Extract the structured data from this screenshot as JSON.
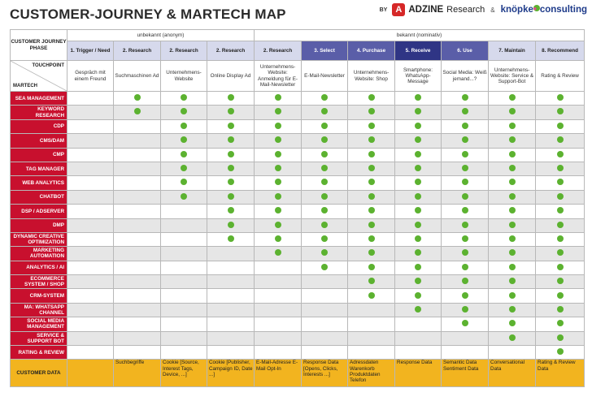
{
  "header": {
    "title": "CUSTOMER-JOURNEY & MARTECH MAP",
    "by": "BY",
    "adzine_logo": "A",
    "adzine": "ADZINE",
    "adzine_sub": "Research",
    "amp": "&",
    "knoepke_a": "knöpke",
    "knoepke_dot": "•",
    "knoepke_b": "consulting"
  },
  "groups": {
    "anonymous": "unbekannt (anonym)",
    "known": "bekannt (nominativ)"
  },
  "row_labels": {
    "phase": "CUSTOMER JOURNEY PHASE",
    "touchpoint": "TOUCHPOINT",
    "martech": "MARTECH",
    "customer_data": "CUSTOMER DATA"
  },
  "phases": [
    "1. Trigger / Need",
    "2. Research",
    "2. Research",
    "2. Research",
    "2. Research",
    "3. Select",
    "4. Purchase",
    "5. Receive",
    "6. Use",
    "7. Maintain",
    "8. Recommend"
  ],
  "touchpoints": [
    "Gespräch mit einem Freund",
    "Suchmaschinen Ad",
    "Unternehmens-Website",
    "Online Display Ad",
    "Unternehmens-Website: Anmeldung für E-Mail-Newsletter",
    "E-Mail-Newsletter",
    "Unternehmens-Website: Shop",
    "Smartphone: WhatsApp-Message",
    "Social Media: Weiß jemand...?",
    "Unternehmens-Website: Service & Support-Bot",
    "Rating & Review"
  ],
  "martech": [
    {
      "label": "SEA MANAGEMENT",
      "dots": [
        0,
        1,
        1,
        1,
        1,
        1,
        1,
        1,
        1,
        1,
        1
      ]
    },
    {
      "label": "KEYWORD RESEARCH",
      "dots": [
        0,
        1,
        1,
        1,
        1,
        1,
        1,
        1,
        1,
        1,
        1
      ]
    },
    {
      "label": "CDP",
      "dots": [
        0,
        0,
        1,
        1,
        1,
        1,
        1,
        1,
        1,
        1,
        1
      ]
    },
    {
      "label": "CMS/DAM",
      "dots": [
        0,
        0,
        1,
        1,
        1,
        1,
        1,
        1,
        1,
        1,
        1
      ]
    },
    {
      "label": "CMP",
      "dots": [
        0,
        0,
        1,
        1,
        1,
        1,
        1,
        1,
        1,
        1,
        1
      ]
    },
    {
      "label": "TAG MANAGER",
      "dots": [
        0,
        0,
        1,
        1,
        1,
        1,
        1,
        1,
        1,
        1,
        1
      ]
    },
    {
      "label": "WEB ANALYTICS",
      "dots": [
        0,
        0,
        1,
        1,
        1,
        1,
        1,
        1,
        1,
        1,
        1
      ]
    },
    {
      "label": "CHATBOT",
      "dots": [
        0,
        0,
        1,
        1,
        1,
        1,
        1,
        1,
        1,
        1,
        1
      ]
    },
    {
      "label": "DSP / ADSERVER",
      "dots": [
        0,
        0,
        0,
        1,
        1,
        1,
        1,
        1,
        1,
        1,
        1
      ]
    },
    {
      "label": "DMP",
      "dots": [
        0,
        0,
        0,
        1,
        1,
        1,
        1,
        1,
        1,
        1,
        1
      ]
    },
    {
      "label": "DYNAMIC CREATIVE OPTIMIZATION",
      "dots": [
        0,
        0,
        0,
        1,
        1,
        1,
        1,
        1,
        1,
        1,
        1
      ]
    },
    {
      "label": "MARKETING AUTOMATION",
      "dots": [
        0,
        0,
        0,
        0,
        1,
        1,
        1,
        1,
        1,
        1,
        1
      ]
    },
    {
      "label": "ANALYTICS / AI",
      "dots": [
        0,
        0,
        0,
        0,
        0,
        1,
        1,
        1,
        1,
        1,
        1
      ]
    },
    {
      "label": "ECOMMERCE SYSTEM / SHOP",
      "dots": [
        0,
        0,
        0,
        0,
        0,
        0,
        1,
        1,
        1,
        1,
        1
      ]
    },
    {
      "label": "CRM-SYSTEM",
      "dots": [
        0,
        0,
        0,
        0,
        0,
        0,
        1,
        1,
        1,
        1,
        1
      ]
    },
    {
      "label": "MA: WHATSAPP CHANNEL",
      "dots": [
        0,
        0,
        0,
        0,
        0,
        0,
        0,
        1,
        1,
        1,
        1
      ]
    },
    {
      "label": "SOCIAL MEDIA MANAGEMENT",
      "dots": [
        0,
        0,
        0,
        0,
        0,
        0,
        0,
        0,
        1,
        1,
        1
      ]
    },
    {
      "label": "SERVICE & SUPPORT BOT",
      "dots": [
        0,
        0,
        0,
        0,
        0,
        0,
        0,
        0,
        0,
        1,
        1
      ]
    },
    {
      "label": "RATING & REVIEW",
      "dots": [
        0,
        0,
        0,
        0,
        0,
        0,
        0,
        0,
        0,
        0,
        1
      ]
    }
  ],
  "customer_data": [
    "",
    "Suchbegriffe",
    "Cookie [Source, Interest Tags, Device, ...]",
    "Cookie [Publisher, Campaign ID, Date ...]",
    "E-Mail-Adresse E-Mail Opt-In",
    "Response Data [Opens, Clicks, Interests ...]",
    "Adressdaten Warenkorb Produktdaten Telefon",
    "Response Data",
    "Semantic Data Sentiment Data",
    "Conversational Data",
    "Rating & Review Data"
  ],
  "colors": {
    "label_red": "#c8102e",
    "dot_green": "#5cb230",
    "data_yellow": "#f2b41f",
    "phase_dark": "#2f3585",
    "phase_mid": "#5a5ea8",
    "phase_light": "#d6d9ec"
  }
}
